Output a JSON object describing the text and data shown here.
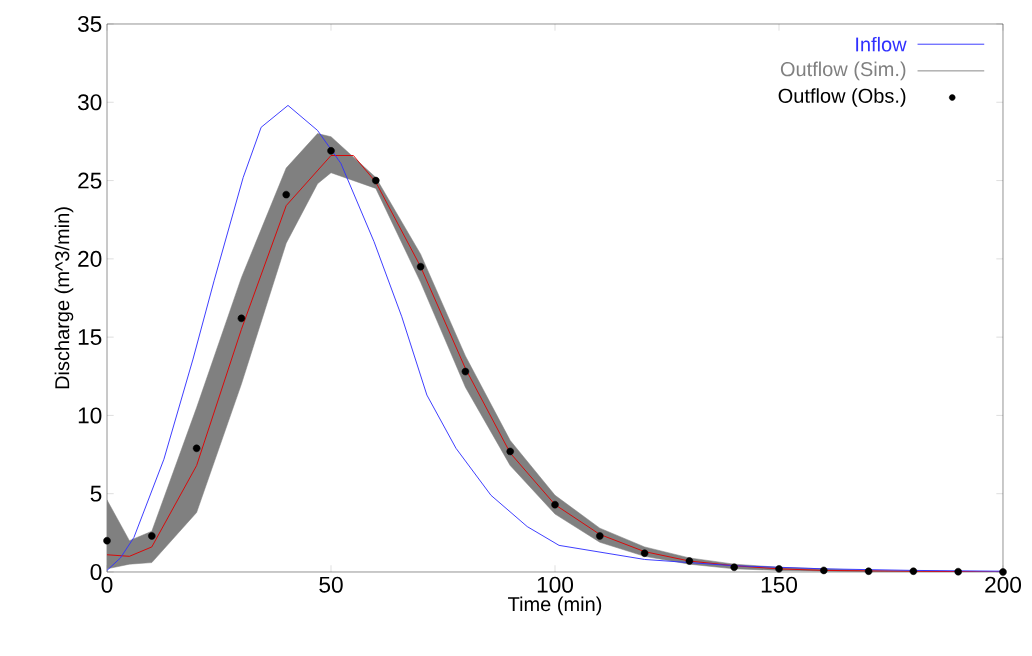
{
  "chart_data": {
    "type": "line",
    "xlabel": "Time (min)",
    "ylabel": "Discharge (m^3/min)",
    "xlim": [
      0,
      200
    ],
    "ylim": [
      0,
      35
    ],
    "xticks": [
      0,
      50,
      100,
      150,
      200
    ],
    "yticks": [
      0,
      5,
      10,
      15,
      20,
      25,
      30,
      35
    ],
    "grid": false,
    "legend": "top right",
    "series": [
      {
        "name": "Inflow",
        "color": "#3030ff",
        "x": [
          0,
          3,
          6,
          12.7,
          19.2,
          23.9,
          30.4,
          34.4,
          40.4,
          47,
          52.2,
          59.6,
          65.8,
          71.4,
          77.9,
          85.7,
          93.8,
          100.9,
          120,
          140,
          160,
          180,
          200
        ],
        "values": [
          0.1,
          0.9,
          2.2,
          7.2,
          13.6,
          18.6,
          25.2,
          28.4,
          29.8,
          28.2,
          26.1,
          21.1,
          16.3,
          11.3,
          7.9,
          4.9,
          2.9,
          1.7,
          0.8,
          0.4,
          0.2,
          0.1,
          0.05
        ]
      },
      {
        "name": "Outflow (Sim.)",
        "color": "#808080",
        "x": [
          0,
          5,
          10,
          20,
          30,
          40,
          47,
          50,
          60,
          70,
          80,
          90,
          100,
          110,
          120,
          130,
          140,
          150,
          160,
          170,
          200
        ],
        "values": [
          null,
          null,
          null,
          null,
          null,
          null,
          null,
          null,
          null,
          null,
          null,
          null,
          null,
          null,
          null,
          null,
          null,
          null,
          null,
          null,
          null
        ],
        "lower": [
          0.2,
          0.5,
          0.6,
          3.8,
          12.0,
          21.0,
          24.8,
          25.5,
          24.5,
          18.5,
          11.8,
          6.8,
          3.7,
          1.9,
          1.0,
          0.5,
          0.2,
          0.1,
          0.05,
          0,
          0
        ],
        "upper": [
          4.6,
          2.0,
          2.6,
          10.5,
          18.8,
          25.8,
          28.0,
          27.8,
          25.2,
          20.3,
          13.8,
          8.4,
          4.9,
          2.8,
          1.6,
          0.9,
          0.5,
          0.3,
          0.2,
          0.1,
          0
        ]
      },
      {
        "color": "#e00000",
        "x": [
          0,
          5,
          10,
          20,
          30,
          40,
          50,
          55,
          60,
          70,
          80,
          90,
          100,
          110,
          120,
          130,
          140,
          150,
          160,
          200
        ],
        "values": [
          1.1,
          1.0,
          1.6,
          6.8,
          15.5,
          23.4,
          26.6,
          26.6,
          24.9,
          19.5,
          13.0,
          7.6,
          4.3,
          2.4,
          1.3,
          0.7,
          0.4,
          0.2,
          0.1,
          0
        ]
      },
      {
        "name": "Outflow (Obs.)",
        "type": "scatter",
        "color": "#000000",
        "marker": "circle",
        "x": [
          0,
          10,
          20,
          30,
          40,
          50,
          60,
          70,
          80,
          90,
          100,
          110,
          120,
          130,
          140,
          150,
          160,
          170,
          180,
          190,
          200
        ],
        "values": [
          2.0,
          2.3,
          7.9,
          16.2,
          24.1,
          26.9,
          25.0,
          19.5,
          12.8,
          7.7,
          4.3,
          2.3,
          1.2,
          0.7,
          0.3,
          0.2,
          0.1,
          0.05,
          0.05,
          0.02,
          0
        ]
      }
    ]
  }
}
